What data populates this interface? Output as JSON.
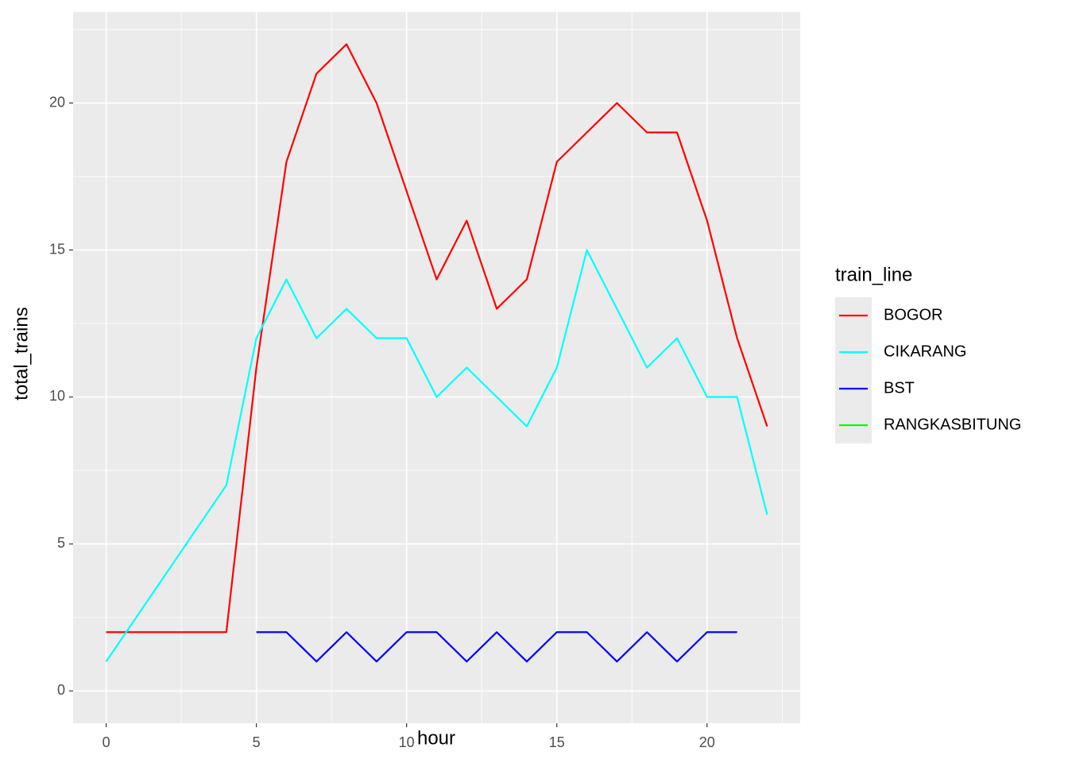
{
  "chart_data": {
    "type": "line",
    "x_label": "hour",
    "y_label": "total_trains",
    "legend_title": "train_line",
    "xlim": [
      -1.1,
      23.1
    ],
    "ylim": [
      -1.1,
      23.1
    ],
    "xticks": [
      0,
      5,
      10,
      15,
      20
    ],
    "yticks": [
      0,
      5,
      10,
      15,
      20
    ],
    "grid": true,
    "legend_position": "right",
    "series": [
      {
        "name": "BOGOR",
        "color": "#ff0000",
        "x": [
          0,
          1,
          2,
          3,
          4,
          5,
          6,
          7,
          8,
          9,
          10,
          11,
          12,
          13,
          14,
          15,
          16,
          17,
          18,
          19,
          20,
          21,
          22
        ],
        "values": [
          2,
          2,
          2,
          2,
          2,
          11,
          18,
          21,
          22,
          20,
          17,
          14,
          16,
          13,
          14,
          18,
          19,
          20,
          19,
          19,
          16,
          12,
          9
        ]
      },
      {
        "name": "CIKARANG",
        "color": "#00ffff",
        "x": [
          0,
          4,
          5,
          6,
          7,
          8,
          9,
          10,
          11,
          12,
          13,
          14,
          15,
          16,
          17,
          18,
          19,
          20,
          21,
          22
        ],
        "values": [
          1,
          7,
          12,
          14,
          12,
          13,
          12,
          12,
          10,
          11,
          10,
          9,
          11,
          15,
          13,
          11,
          12,
          10,
          10,
          6
        ]
      },
      {
        "name": "BST",
        "color": "#0000ff",
        "x": [
          5,
          6,
          7,
          8,
          9,
          10,
          11,
          12,
          13,
          14,
          15,
          16,
          17,
          18,
          19,
          20,
          21
        ],
        "values": [
          2,
          2,
          1,
          2,
          1,
          2,
          2,
          1,
          2,
          1,
          2,
          2,
          1,
          2,
          1,
          2,
          2
        ]
      },
      {
        "name": "RANGKASBITUNG",
        "color": "#00ff00",
        "x": [],
        "values": []
      }
    ]
  }
}
